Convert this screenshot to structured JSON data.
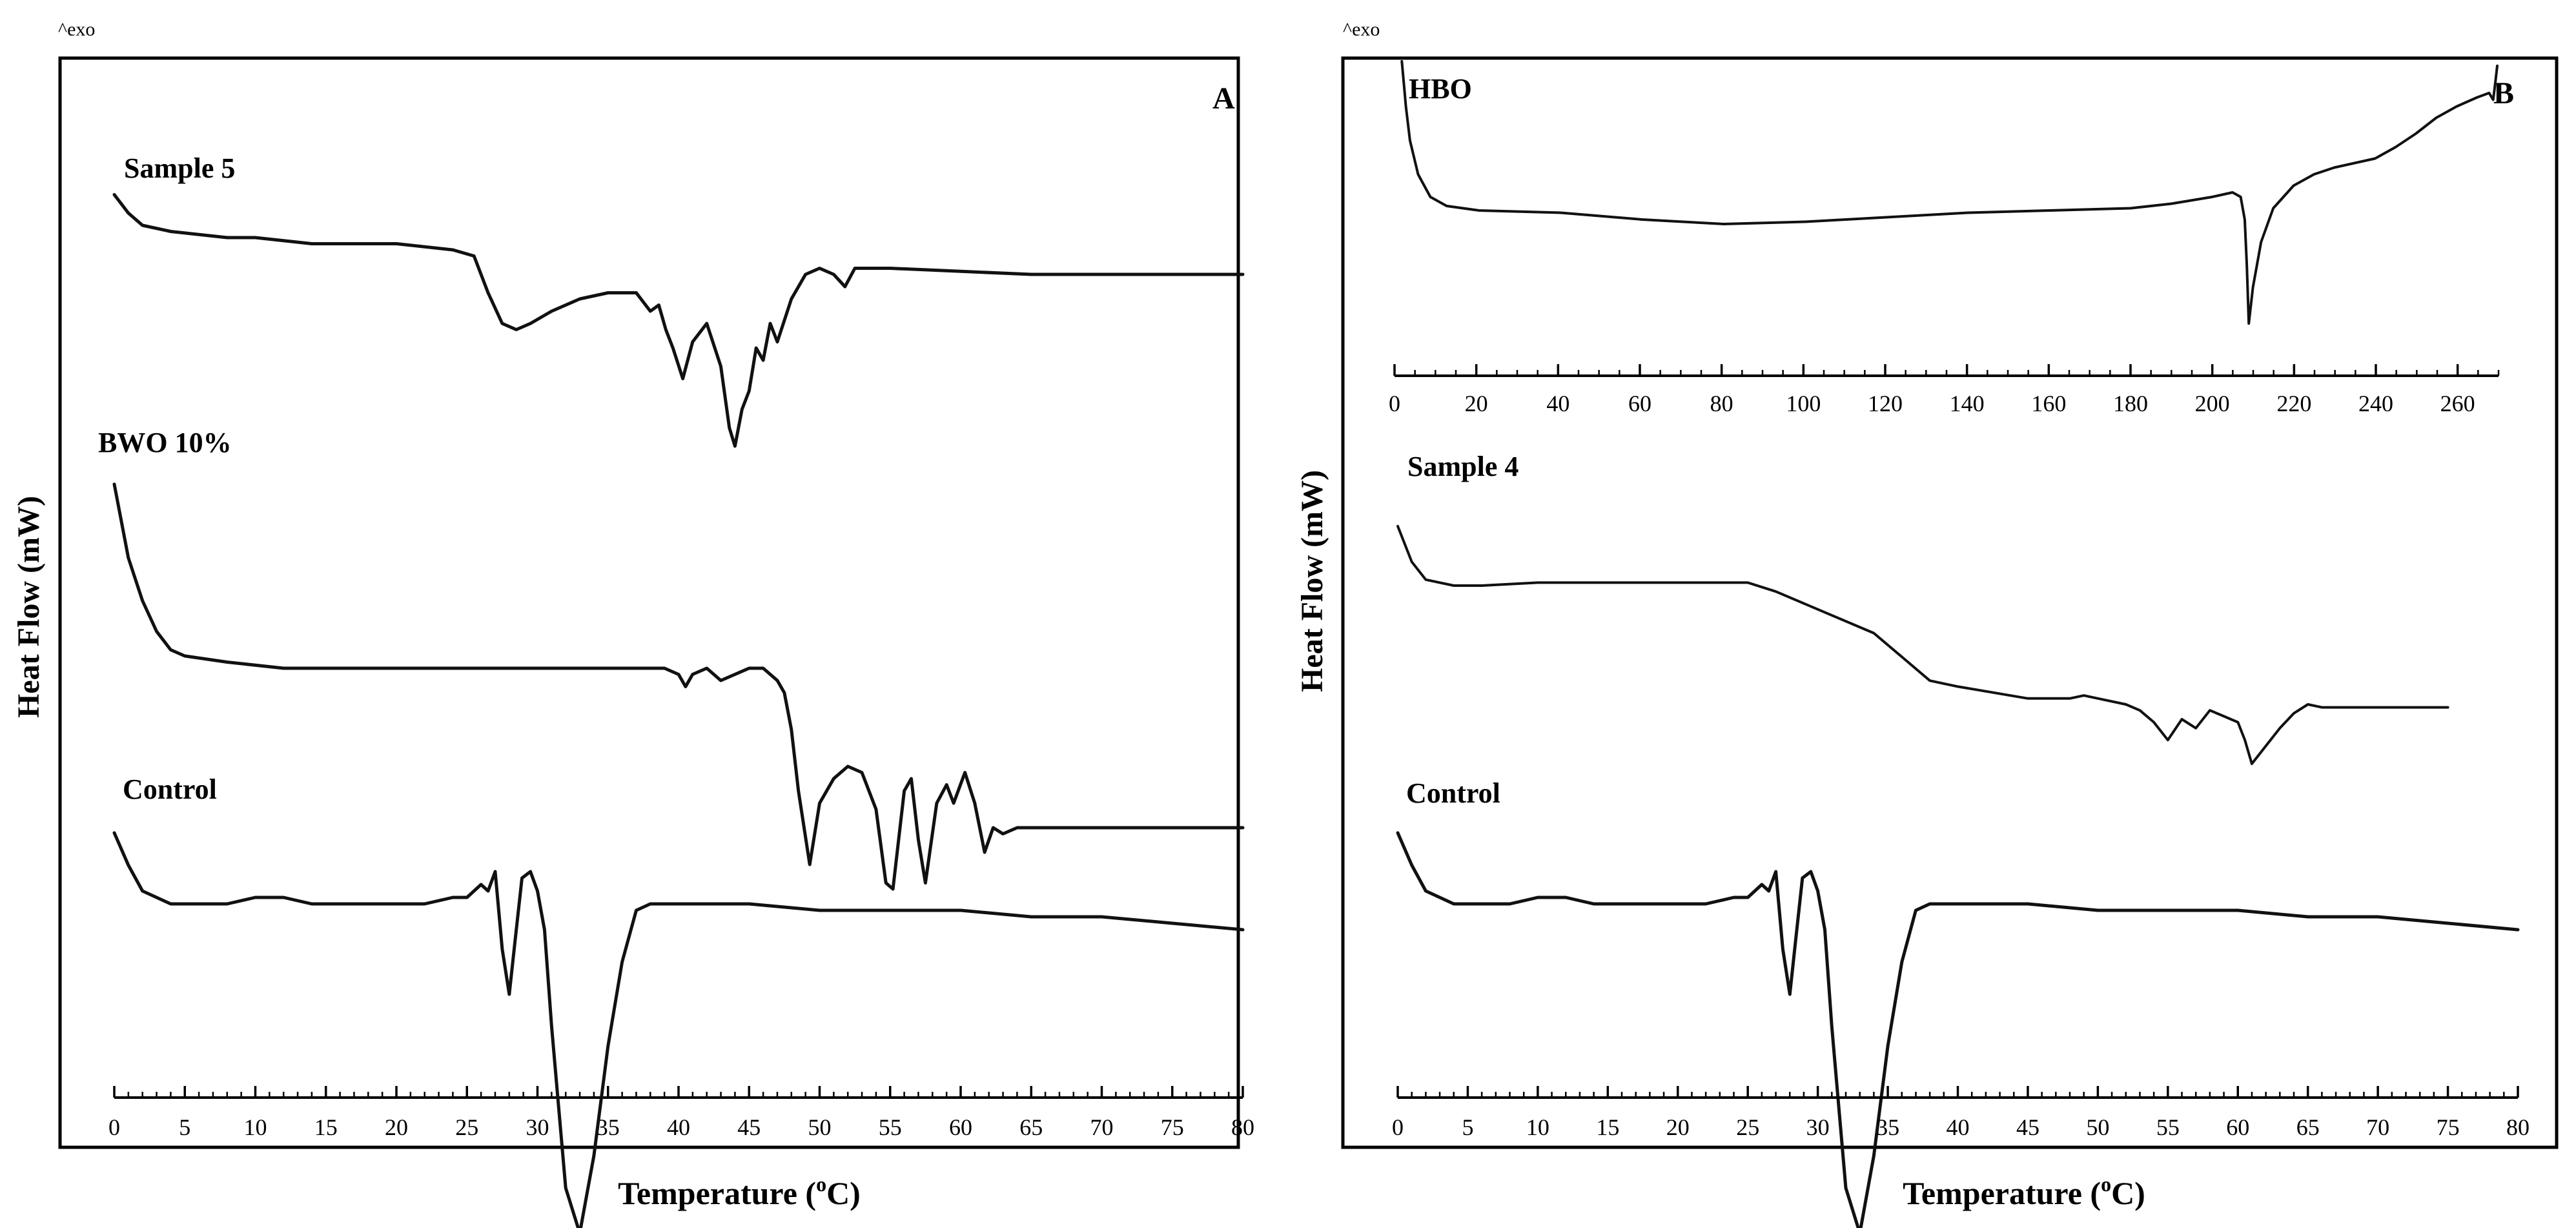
{
  "figure": {
    "exo_marker": "^exo",
    "y_axis_label": "Heat Flow (mW)",
    "x_axis_label_main": "Temperature (",
    "x_axis_label_sup": "o",
    "x_axis_label_end": "C)"
  },
  "chart_data": [
    {
      "id": "A",
      "type": "line",
      "panel_label": "A",
      "xlabel": "Temperature (oC)",
      "ylabel": "Heat Flow (mW)",
      "xlim": [
        0,
        80
      ],
      "ticks": [
        "0",
        "5",
        "10",
        "15",
        "20",
        "25",
        "30",
        "35",
        "40",
        "45",
        "50",
        "55",
        "60",
        "65",
        "70",
        "75",
        "80"
      ],
      "series": [
        {
          "name": "Sample 5",
          "x": [
            0,
            1,
            2,
            4,
            8,
            10,
            14,
            20,
            24,
            25.5,
            26.5,
            27.5,
            28.5,
            29.5,
            31,
            33,
            35,
            37,
            38,
            38.6,
            39.1,
            39.6,
            40.3,
            41,
            42,
            43,
            43.6,
            44,
            44.5,
            45,
            45.5,
            46,
            46.5,
            47,
            48,
            49,
            50,
            51,
            51.8,
            52.5,
            55,
            65,
            80
          ],
          "y": [
            13,
            10,
            8,
            7,
            6,
            6,
            5,
            5,
            4,
            3,
            -3,
            -8,
            -9,
            -8,
            -6,
            -4,
            -3,
            -3,
            -6,
            -5,
            -9,
            -12,
            -17,
            -11,
            -8,
            -15,
            -25,
            -28,
            -22,
            -19,
            -12,
            -14,
            -8,
            -11,
            -4,
            0,
            1,
            0,
            -2,
            1,
            1,
            0,
            0
          ]
        },
        {
          "name": "BWO 10%",
          "x": [
            0,
            0.5,
            1,
            2,
            3,
            4,
            5,
            8,
            12,
            18,
            25,
            30,
            35,
            39,
            40,
            40.5,
            41,
            42,
            43,
            44,
            45,
            46,
            47,
            47.5,
            48,
            48.5,
            49.3,
            50,
            51,
            52,
            53,
            54,
            54.7,
            55.2,
            56,
            56.5,
            57,
            57.5,
            58.3,
            59,
            59.5,
            60.3,
            61,
            61.7,
            62.3,
            63,
            64,
            66,
            70,
            75,
            80
          ],
          "y": [
            0,
            -6,
            -12,
            -19,
            -24,
            -27,
            -28,
            -29,
            -30,
            -30,
            -30,
            -30,
            -30,
            -30,
            -31,
            -33,
            -31,
            -30,
            -32,
            -31,
            -30,
            -30,
            -32,
            -34,
            -40,
            -50,
            -62,
            -52,
            -48,
            -46,
            -47,
            -53,
            -65,
            -66,
            -50,
            -48,
            -58,
            -65,
            -52,
            -49,
            -52,
            -47,
            -52,
            -60,
            -56,
            -57,
            -56,
            -56,
            -56,
            -56,
            -56
          ]
        },
        {
          "name": "Control",
          "x": [
            0,
            1,
            2,
            4,
            6,
            8,
            10,
            12,
            14,
            16,
            18,
            20,
            22,
            24,
            25,
            26,
            26.5,
            27,
            27.5,
            28,
            28.4,
            28.9,
            29.5,
            30,
            30.5,
            31,
            32,
            33,
            34,
            35,
            36,
            37,
            38,
            40,
            45,
            50,
            55,
            60,
            65,
            70,
            75,
            80
          ],
          "y": [
            0,
            -5,
            -9,
            -11,
            -11,
            -11,
            -10,
            -10,
            -11,
            -11,
            -11,
            -11,
            -11,
            -10,
            -10,
            -8,
            -9,
            -6,
            -18,
            -25,
            -17,
            -7,
            -6,
            -9,
            -15,
            -30,
            -55,
            -62,
            -50,
            -33,
            -20,
            -12,
            -11,
            -11,
            -11,
            -12,
            -12,
            -12,
            -13,
            -13,
            -14,
            -15
          ]
        }
      ]
    },
    {
      "id": "B",
      "type": "line",
      "panel_label": "B",
      "xlabel": "Temperature (oC)",
      "ylabel": "Heat Flow (mW)",
      "subplots": [
        {
          "name": "HBO",
          "xlim": [
            0,
            270
          ],
          "ticks": [
            "0",
            "20",
            "40",
            "60",
            "80",
            "100",
            "120",
            "140",
            "160",
            "180",
            "200",
            "220",
            "240",
            "260"
          ],
          "x": [
            1,
            1.5,
            2,
            3,
            5,
            8,
            12,
            20,
            40,
            60,
            80,
            100,
            120,
            140,
            160,
            180,
            190,
            200,
            205,
            207,
            208,
            208.5,
            209,
            210,
            212,
            215,
            220,
            225,
            230,
            240,
            245,
            250,
            255,
            260,
            265,
            268,
            269,
            269.5,
            270
          ],
          "y": [
            20,
            10,
            0,
            -15,
            -30,
            -40,
            -44,
            -46,
            -47,
            -50,
            -52,
            -51,
            -49,
            -47,
            -46,
            -45,
            -43,
            -40,
            -38,
            -40,
            -50,
            -70,
            -96,
            -80,
            -60,
            -45,
            -35,
            -30,
            -27,
            -23,
            -18,
            -12,
            -5,
            0,
            4,
            6,
            3,
            10,
            18
          ]
        },
        {
          "name": "Sample 4",
          "xlim": [
            0,
            80
          ],
          "x": [
            0,
            1,
            2,
            4,
            6,
            10,
            14,
            20,
            25,
            27,
            30,
            34,
            36,
            38,
            40,
            45,
            48,
            49,
            50,
            52,
            53,
            54,
            55,
            56,
            57,
            58,
            59,
            60,
            60.5,
            61,
            62,
            63,
            64,
            65,
            66,
            70,
            75
          ],
          "y": [
            0,
            -12,
            -18,
            -20,
            -20,
            -19,
            -19,
            -19,
            -19,
            -22,
            -28,
            -36,
            -44,
            -52,
            -54,
            -58,
            -58,
            -57,
            -58,
            -60,
            -62,
            -66,
            -72,
            -65,
            -68,
            -62,
            -64,
            -66,
            -72,
            -80,
            -74,
            -68,
            -63,
            -60,
            -61,
            -61,
            -61
          ]
        },
        {
          "name": "Control",
          "xlim": [
            0,
            80
          ],
          "ticks": [
            "0",
            "5",
            "10",
            "15",
            "20",
            "25",
            "30",
            "35",
            "40",
            "45",
            "50",
            "55",
            "60",
            "65",
            "70",
            "75",
            "80"
          ],
          "x": [
            0,
            1,
            2,
            4,
            6,
            8,
            10,
            12,
            14,
            16,
            18,
            20,
            22,
            24,
            25,
            26,
            26.5,
            27,
            27.5,
            28,
            28.4,
            28.9,
            29.5,
            30,
            30.5,
            31,
            32,
            33,
            34,
            35,
            36,
            37,
            38,
            40,
            45,
            50,
            55,
            60,
            65,
            70,
            75,
            80
          ],
          "y": [
            0,
            -5,
            -9,
            -11,
            -11,
            -11,
            -10,
            -10,
            -11,
            -11,
            -11,
            -11,
            -11,
            -10,
            -10,
            -8,
            -9,
            -6,
            -18,
            -25,
            -17,
            -7,
            -6,
            -9,
            -15,
            -30,
            -55,
            -62,
            -50,
            -33,
            -20,
            -12,
            -11,
            -11,
            -11,
            -12,
            -12,
            -12,
            -13,
            -13,
            -14,
            -15
          ]
        }
      ]
    }
  ]
}
